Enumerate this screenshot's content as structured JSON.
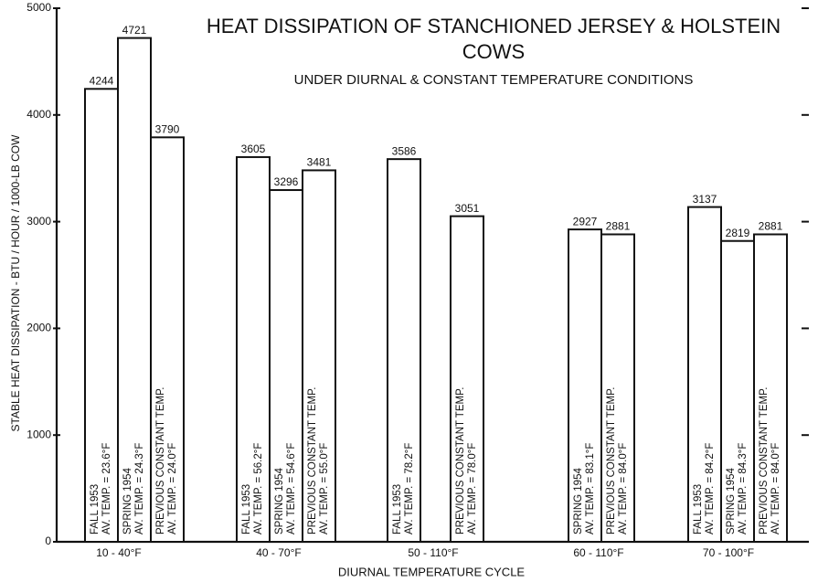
{
  "chart_data": {
    "type": "bar",
    "title": [
      "HEAT DISSIPATION OF STANCHIONED JERSEY & HOLSTEIN",
      "COWS"
    ],
    "subtitle": "UNDER DIURNAL & CONSTANT TEMPERATURE CONDITIONS",
    "x_label": "DIURNAL TEMPERATURE CYCLE",
    "y_label": "STABLE HEAT DISSIPATION - BTU / HOUR / 1000-LB COW",
    "categories": [
      "10 - 40°F",
      "40 - 70°F",
      "50 - 110°F",
      "60 - 110°F",
      "70 - 100°F"
    ],
    "series": [
      {
        "name": "FALL 1953",
        "color": "#ffffff",
        "values": [
          4244,
          3605,
          3586,
          null,
          3137
        ],
        "temp_labels": [
          "AV. TEMP. = 23.6°F",
          "AV. TEMP. = 56.2°F",
          "AV. TEMP. = 78.2°F",
          null,
          "AV. TEMP. = 84.2°F"
        ]
      },
      {
        "name": "SPRING 1954",
        "color": "#ffffff",
        "values": [
          4721,
          3296,
          null,
          2927,
          2819
        ],
        "temp_labels": [
          "AV. TEMP. = 24.3°F",
          "AV. TEMP. = 54.6°F",
          null,
          "AV. TEMP. = 83.1°F",
          "AV. TEMP. = 84.3°F"
        ]
      },
      {
        "name": "PREVIOUS CONSTANT TEMP.",
        "color": "#ffffff",
        "values": [
          3790,
          3481,
          3051,
          2881,
          2881
        ],
        "temp_labels": [
          "AV. TEMP. = 24.0°F",
          "AV. TEMP. = 55.0°F",
          "AV. TEMP. = 78.0°F",
          "AV. TEMP. = 84.0°F",
          "AV. TEMP. = 84.0°F"
        ]
      }
    ],
    "ylim": [
      0,
      5000
    ],
    "yticks": [
      0,
      1000,
      2000,
      3000,
      4000,
      5000
    ]
  }
}
